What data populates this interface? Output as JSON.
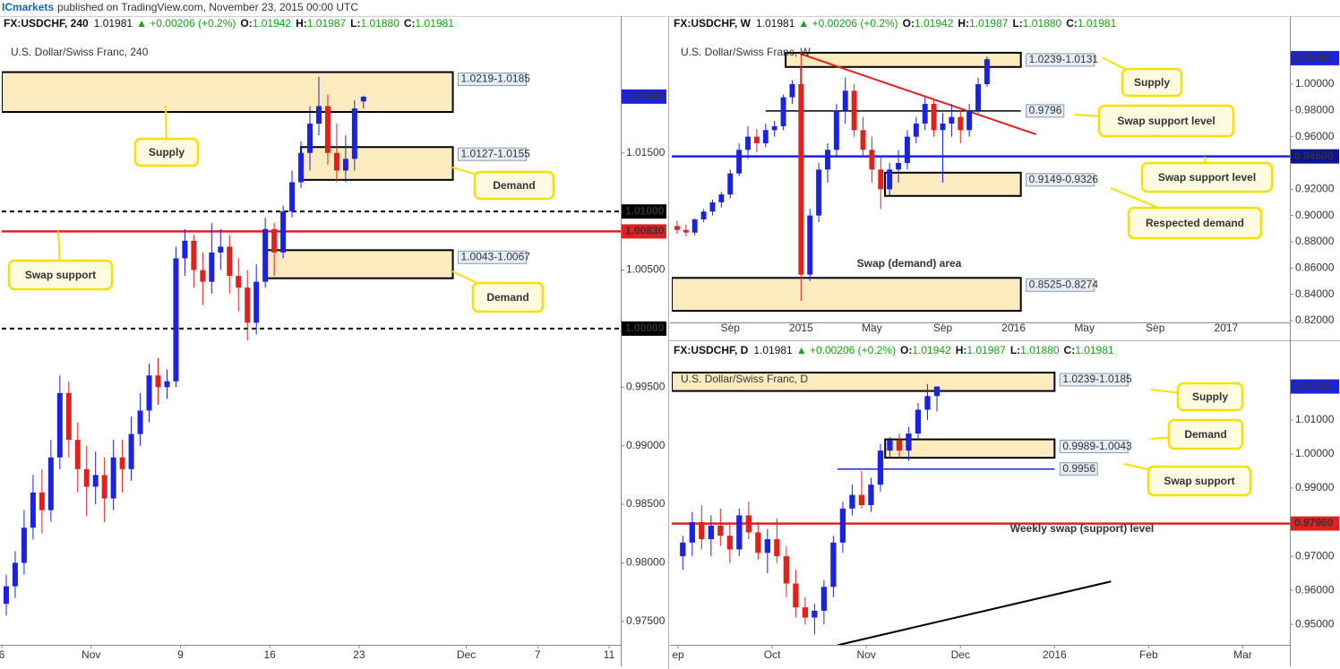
{
  "header": {
    "author": "ICmarkets",
    "text": "published on TradingView.com, November 23, 2015 00:00 UTC"
  },
  "chart_data": [
    {
      "type": "candlestick",
      "title": "U.S. Dollar/Swiss Franc, 240",
      "symbol": "FX:USDCHF, 240",
      "last": 1.01981,
      "change": "▲ +0.00206 (+0.2%)",
      "open_label": "O:",
      "open_value": 1.01942,
      "high_label": "H:",
      "high_value": 1.01987,
      "low_label": "L:",
      "low_value": 1.0188,
      "low_text": "1.01880",
      "close_label": "C:",
      "close_value": 1.01981,
      "up_color": "#1b22e0",
      "down_color": "#e0221e",
      "x": [
        0.25,
        0.75,
        1.25,
        1.75,
        2.25,
        2.75,
        3.25,
        3.75,
        4.25,
        4.75,
        5.25,
        5.75,
        6.25,
        6.75,
        7.25,
        7.75,
        8.25,
        8.75,
        9.25,
        9.75,
        10.25,
        10.75,
        11.25,
        11.75,
        12.25,
        12.75,
        13.25,
        13.75,
        14.25,
        14.75,
        15.25,
        15.75,
        16.25,
        16.75,
        17.25,
        17.75,
        18.25,
        18.75,
        19.25,
        19.75,
        20.25
      ],
      "open": [
        0.9765,
        0.978,
        0.98,
        0.983,
        0.986,
        0.9845,
        0.989,
        0.9945,
        0.9905,
        0.988,
        0.9865,
        0.9875,
        0.9855,
        0.989,
        0.988,
        0.991,
        0.993,
        0.996,
        0.995,
        0.9955,
        1.006,
        1.0075,
        1.005,
        1.004,
        1.0065,
        1.007,
        1.0045,
        1.0035,
        1.0005,
        1.004,
        1.0085,
        1.0065,
        1.01,
        1.0125,
        1.015,
        1.0175,
        1.019,
        1.015,
        1.0135,
        1.0145,
        1.0194
      ],
      "high": [
        0.979,
        0.981,
        0.9845,
        0.9875,
        0.988,
        0.9905,
        0.996,
        0.9955,
        0.992,
        0.99,
        0.9895,
        0.989,
        0.9905,
        0.9905,
        0.9925,
        0.9945,
        0.997,
        0.9975,
        0.9965,
        1.007,
        1.0085,
        1.008,
        1.0065,
        1.009,
        1.0085,
        1.008,
        1.006,
        1.005,
        1.0055,
        1.0095,
        1.009,
        1.0105,
        1.0135,
        1.016,
        1.019,
        1.0215,
        1.02,
        1.0175,
        1.0165,
        1.0195,
        1.0199
      ],
      "low": [
        0.9755,
        0.977,
        0.979,
        0.982,
        0.9825,
        0.9835,
        0.988,
        0.989,
        0.986,
        0.984,
        0.985,
        0.9835,
        0.9845,
        0.986,
        0.987,
        0.99,
        0.992,
        0.9935,
        0.994,
        0.995,
        1.0045,
        1.0035,
        1.002,
        1.003,
        1.005,
        1.003,
        1.0015,
        0.999,
        0.9995,
        1.0035,
        1.0045,
        1.006,
        1.0095,
        1.012,
        1.0135,
        1.0165,
        1.014,
        1.0125,
        1.0125,
        1.0135,
        1.0188
      ],
      "close": [
        0.978,
        0.98,
        0.983,
        0.986,
        0.9845,
        0.989,
        0.9945,
        0.9905,
        0.988,
        0.9865,
        0.9875,
        0.9855,
        0.989,
        0.988,
        0.991,
        0.993,
        0.996,
        0.995,
        0.9955,
        1.006,
        1.0075,
        1.005,
        1.004,
        1.0065,
        1.007,
        1.0045,
        1.0035,
        1.0005,
        1.004,
        1.0085,
        1.0065,
        1.01,
        1.0125,
        1.015,
        1.0175,
        1.019,
        1.015,
        1.0135,
        1.0145,
        1.0188,
        1.0198
      ],
      "xlim": [
        0,
        34.65
      ],
      "ylim": [
        0.973,
        1.025
      ],
      "xticks": [
        {
          "value": 0,
          "label": "6"
        },
        {
          "value": 5,
          "label": "Nov"
        },
        {
          "value": 10,
          "label": "9"
        },
        {
          "value": 15,
          "label": "16"
        },
        {
          "value": 20,
          "label": "23"
        },
        {
          "value": 26,
          "label": "Dec"
        },
        {
          "value": 30,
          "label": "7"
        },
        {
          "value": 34,
          "label": "11"
        }
      ],
      "yticks": [
        {
          "value": 1.015,
          "label": "1.01500"
        },
        {
          "value": 1.005,
          "label": "1.00500"
        },
        {
          "value": 0.995,
          "label": "0.99500"
        },
        {
          "value": 0.99,
          "label": "0.99000"
        },
        {
          "value": 0.985,
          "label": "0.98500"
        },
        {
          "value": 0.98,
          "label": "0.98000"
        },
        {
          "value": 0.975,
          "label": "0.97500"
        }
      ],
      "zones": [
        {
          "high": 1.0219,
          "low": 1.0185,
          "x0": 0,
          "x1": 25.25,
          "label": "1.0219-1.0185"
        },
        {
          "high": 1.0155,
          "low": 1.0127,
          "x0": 16.75,
          "x1": 25.25,
          "label": "1.0127-1.0155"
        },
        {
          "high": 1.0067,
          "low": 1.0043,
          "x0": 14.75,
          "x1": 25.25,
          "label": "1.0043-1.0067"
        }
      ],
      "lines": [
        {
          "value": 1.01,
          "color": "#000000",
          "dash": true
        },
        {
          "value": 1.0083,
          "color": "#e0221e",
          "dash": false
        },
        {
          "value": 1.0,
          "color": "#000000",
          "dash": true
        }
      ],
      "price_tags": [
        {
          "value": 1.01981,
          "label": "1.01981",
          "color": "#1b22e0"
        },
        {
          "value": 1.01,
          "label": "1.01000",
          "color": "#000000"
        },
        {
          "value": 1.0083,
          "label": "1.00830",
          "color": "#e0221e"
        },
        {
          "value": 1.0,
          "label": "1.00000",
          "color": "#000000"
        }
      ],
      "annotations": [
        "Supply",
        "Demand",
        "Swap support",
        "Demand"
      ]
    },
    {
      "type": "candlestick",
      "title": "U.S. Dollar/Swiss Franc, W",
      "symbol": "FX:USDCHF, W",
      "last": 1.01981,
      "change": "▲ +0.00206 (+0.2%)",
      "open_label": "O:",
      "open_value": 1.01942,
      "high_label": "H:",
      "high_value": 1.01987,
      "low_label": "L:",
      "low_value": 1.0188,
      "low_text": "1.01880",
      "close_label": "C:",
      "close_value": 1.01981,
      "up_color": "#1b22e0",
      "down_color": "#e0221e",
      "x": [
        -3,
        -2.5,
        -2,
        -1.5,
        -1,
        -0.5,
        0,
        0.5,
        1,
        1.5,
        2,
        2.5,
        3,
        3.5,
        4,
        4.5,
        5,
        5.5,
        6,
        6.5,
        7,
        7.5,
        8,
        8.5,
        9,
        9.5,
        10,
        10.5,
        11,
        11.5,
        12,
        12.5,
        13,
        13.5,
        14,
        14.5
      ],
      "open": [
        0.892,
        0.889,
        0.887,
        0.897,
        0.903,
        0.91,
        0.916,
        0.932,
        0.95,
        0.96,
        0.955,
        0.965,
        0.968,
        0.99,
        1.0,
        0.855,
        0.9,
        0.935,
        0.95,
        0.98,
        0.995,
        0.965,
        0.95,
        0.935,
        0.92,
        0.935,
        0.94,
        0.96,
        0.97,
        0.985,
        0.965,
        0.97,
        0.975,
        0.965,
        0.98,
        1.0
      ],
      "high": [
        0.896,
        0.893,
        0.898,
        0.905,
        0.912,
        0.918,
        0.935,
        0.955,
        0.968,
        0.966,
        0.97,
        0.972,
        0.992,
        1.003,
        1.025,
        0.905,
        0.94,
        0.955,
        0.985,
        1.005,
        1.0,
        0.975,
        0.96,
        0.945,
        0.94,
        0.95,
        0.965,
        0.975,
        0.99,
        0.988,
        0.978,
        0.985,
        0.98,
        0.985,
        1.005,
        1.021
      ],
      "low": [
        0.886,
        0.884,
        0.885,
        0.895,
        0.9,
        0.906,
        0.913,
        0.93,
        0.943,
        0.948,
        0.952,
        0.96,
        0.965,
        0.985,
        0.835,
        0.85,
        0.895,
        0.925,
        0.945,
        0.97,
        0.96,
        0.945,
        0.925,
        0.905,
        0.915,
        0.925,
        0.935,
        0.955,
        0.965,
        0.96,
        0.925,
        0.96,
        0.955,
        0.96,
        0.978,
        0.998
      ],
      "close": [
        0.889,
        0.887,
        0.897,
        0.903,
        0.91,
        0.916,
        0.932,
        0.95,
        0.96,
        0.955,
        0.965,
        0.968,
        0.99,
        1.0,
        0.855,
        0.9,
        0.935,
        0.95,
        0.98,
        0.995,
        0.965,
        0.95,
        0.935,
        0.92,
        0.935,
        0.94,
        0.96,
        0.97,
        0.985,
        0.965,
        0.97,
        0.975,
        0.965,
        0.98,
        1.0,
        1.019
      ],
      "xlim": [
        -3.3,
        31.6
      ],
      "ylim": [
        0.8186,
        1.0368
      ],
      "xticks": [
        {
          "value": 0,
          "label": "Sep"
        },
        {
          "value": 4,
          "label": "2015"
        },
        {
          "value": 8,
          "label": "May"
        },
        {
          "value": 12,
          "label": "Sep"
        },
        {
          "value": 16,
          "label": "2016"
        },
        {
          "value": 20,
          "label": "May"
        },
        {
          "value": 24,
          "label": "Sep"
        },
        {
          "value": 28,
          "label": "2017"
        }
      ],
      "yticks": [
        {
          "value": 1.0,
          "label": "1.00000"
        },
        {
          "value": 0.98,
          "label": "0.98000"
        },
        {
          "value": 0.96,
          "label": "0.96000"
        },
        {
          "value": 0.92,
          "label": "0.92000"
        },
        {
          "value": 0.9,
          "label": "0.90000"
        },
        {
          "value": 0.88,
          "label": "0.88000"
        },
        {
          "value": 0.86,
          "label": "0.86000"
        },
        {
          "value": 0.84,
          "label": "0.84000"
        },
        {
          "value": 0.82,
          "label": "0.82000"
        }
      ],
      "zones": [
        {
          "high": 1.0239,
          "low": 1.0131,
          "x0": 3.13,
          "x1": 16.41,
          "label": "1.0239-1.0131"
        },
        {
          "high": 0.9326,
          "low": 0.9149,
          "x0": 8.74,
          "x1": 16.41,
          "label": "0.9149-0.9326"
        },
        {
          "high": 0.8525,
          "low": 0.8274,
          "x0": -3.3,
          "x1": 16.41,
          "label": "0.8525-0.8274"
        }
      ],
      "lines": [
        {
          "value": 0.9796,
          "x0": 2.0,
          "x1": 16.41,
          "color": "#000000",
          "dash": false,
          "label": "0.9796"
        },
        {
          "value": 0.945,
          "color": "#1b22e0",
          "dash": false
        }
      ],
      "trendlines": [
        {
          "x": [
            3.94,
            17.27
          ],
          "y": [
            1.0232,
            0.9618
          ],
          "color": "#e0221e"
        },
        {
          "x": [
            4.0,
            4.0
          ],
          "y": [
            1.013,
            0.8595
          ],
          "color": "#e0221e"
        }
      ],
      "price_tags": [
        {
          "value": 1.01981,
          "label": "1.01981",
          "color": "#1b22e0"
        },
        {
          "value": 0.945,
          "label": "0.94500",
          "color": "#0a1496"
        }
      ],
      "annotations": [
        "Supply",
        "Swap support level",
        "Swap support level",
        "Respected demand",
        "Swap (demand) area"
      ]
    },
    {
      "type": "candlestick",
      "title": "U.S. Dollar/Swiss Franc, D",
      "symbol": "FX:USDCHF, D",
      "last": 1.01981,
      "change": "▲ +0.00206 (+0.2%)",
      "open_label": "O:",
      "open_value": 1.01942,
      "high_label": "H:",
      "high_value": 1.01987,
      "low_label": "L:",
      "low_value": 1.0188,
      "low_text": "1.01880",
      "close_label": "C:",
      "close_value": 1.01981,
      "up_color": "#1b22e0",
      "down_color": "#e0221e",
      "x": [
        0.05,
        0.15,
        0.25,
        0.35,
        0.45,
        0.55,
        0.65,
        0.75,
        0.85,
        0.95,
        1.05,
        1.15,
        1.25,
        1.35,
        1.45,
        1.55,
        1.65,
        1.75,
        1.85,
        1.95,
        2.05,
        2.15,
        2.25,
        2.35,
        2.45,
        2.55,
        2.65,
        2.75
      ],
      "open": [
        0.97,
        0.974,
        0.98,
        0.975,
        0.979,
        0.976,
        0.972,
        0.982,
        0.977,
        0.971,
        0.975,
        0.97,
        0.962,
        0.955,
        0.952,
        0.954,
        0.961,
        0.974,
        0.984,
        0.988,
        0.985,
        0.991,
        1.001,
        1.004,
        1.001,
        1.006,
        1.013,
        1.017
      ],
      "high": [
        0.976,
        0.983,
        0.985,
        0.982,
        0.984,
        0.98,
        0.984,
        0.986,
        0.98,
        0.978,
        0.981,
        0.973,
        0.966,
        0.958,
        0.956,
        0.963,
        0.976,
        0.986,
        0.991,
        0.995,
        0.993,
        1.003,
        1.005,
        1.006,
        1.008,
        1.015,
        1.0205,
        1.0199
      ],
      "low": [
        0.966,
        0.97,
        0.972,
        0.97,
        0.973,
        0.968,
        0.97,
        0.975,
        0.969,
        0.965,
        0.968,
        0.958,
        0.952,
        0.95,
        0.947,
        0.95,
        0.958,
        0.971,
        0.982,
        0.984,
        0.983,
        0.989,
        0.999,
        0.999,
        0.998,
        1.004,
        1.01,
        1.0125
      ],
      "close": [
        0.974,
        0.98,
        0.975,
        0.979,
        0.976,
        0.972,
        0.982,
        0.977,
        0.971,
        0.975,
        0.97,
        0.962,
        0.955,
        0.952,
        0.954,
        0.961,
        0.974,
        0.984,
        0.988,
        0.985,
        0.991,
        1.001,
        1.004,
        1.001,
        1.006,
        1.013,
        1.017,
        1.0198
      ],
      "xlim": [
        -0.067,
        6.5
      ],
      "ylim": [
        0.944,
        1.0268
      ],
      "xticks": [
        {
          "value": 0,
          "label": "ep"
        },
        {
          "value": 1,
          "label": "Oct"
        },
        {
          "value": 2,
          "label": "Nov"
        },
        {
          "value": 3,
          "label": "Dec"
        },
        {
          "value": 4,
          "label": "2016"
        },
        {
          "value": 5,
          "label": "Feb"
        },
        {
          "value": 6,
          "label": "Mar"
        }
      ],
      "yticks": [
        {
          "value": 1.01,
          "label": "1.01000"
        },
        {
          "value": 1.0,
          "label": "1.00000"
        },
        {
          "value": 0.99,
          "label": "0.99000"
        },
        {
          "value": 0.97,
          "label": "0.97000"
        },
        {
          "value": 0.96,
          "label": "0.96000"
        },
        {
          "value": 0.95,
          "label": "0.95000"
        }
      ],
      "zones": [
        {
          "high": 1.0239,
          "low": 1.0185,
          "x0": -0.067,
          "x1": 4.0,
          "label": "1.0239-1.0185"
        },
        {
          "high": 1.0043,
          "low": 0.9989,
          "x0": 2.2,
          "x1": 4.0,
          "label": "0.9989-1.0043"
        }
      ],
      "lines": [
        {
          "value": 0.9956,
          "x0": 1.695,
          "x1": 4.0,
          "color": "#1b22e0",
          "dash": false,
          "label": "0.9956"
        },
        {
          "value": 0.9796,
          "color": "#e0221e",
          "dash": false
        }
      ],
      "trendlines": [
        {
          "x": [
            1.695,
            4.6
          ],
          "y": [
            0.9439,
            0.9626
          ],
          "color": "#000000"
        }
      ],
      "price_tags": [
        {
          "value": 1.01981,
          "label": "1.01981",
          "color": "#1b22e0"
        },
        {
          "value": 0.9796,
          "label": "0.97960",
          "color": "#e0221e"
        }
      ],
      "annotations": [
        "Supply",
        "Demand",
        "Swap support",
        "Weekly swap (support) level"
      ]
    }
  ]
}
